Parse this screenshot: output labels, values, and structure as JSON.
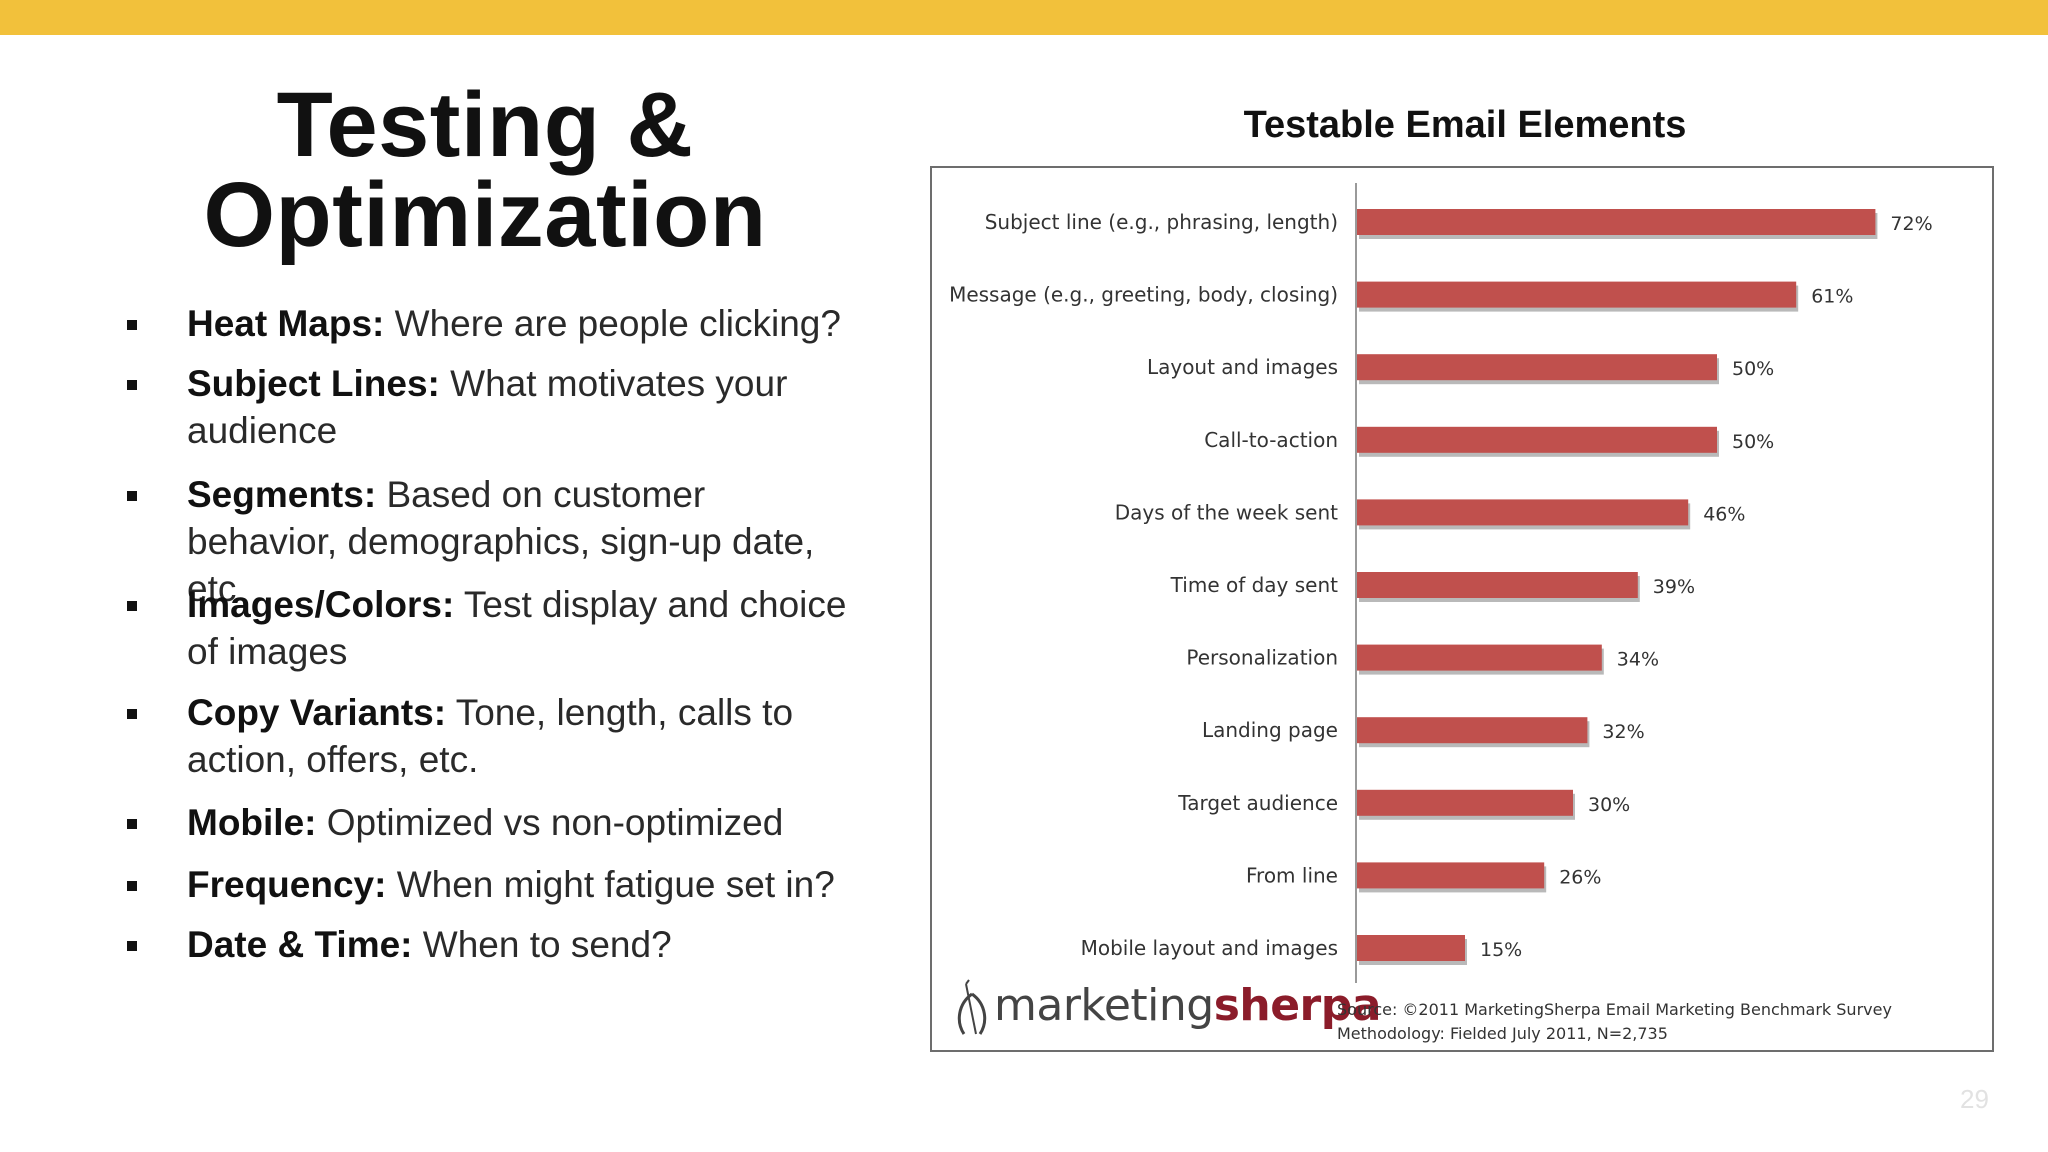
{
  "theme": {
    "accent_bar": "#f2c13b",
    "bar_color": "#c0504d",
    "bar_shadow": "#b9b9b9"
  },
  "slide": {
    "title_line1": "Testing &",
    "title_line2": "Optimization",
    "page_number": "29"
  },
  "bullets": [
    {
      "term": "Heat Maps:",
      "text": "Where are people clicking?"
    },
    {
      "term": "Subject Lines:",
      "text": "What motivates your audience"
    },
    {
      "term": "Segments:",
      "text": "Based on customer behavior, demographics, sign-up date, etc"
    },
    {
      "term": "Images/Colors:",
      "text": "Test display and choice of images"
    },
    {
      "term": "Copy Variants:",
      "text": "Tone, length, calls to action, offers, etc."
    },
    {
      "term": "Mobile:",
      "text": "Optimized vs non-optimized"
    },
    {
      "term": "Frequency:",
      "text": "When might fatigue set in?"
    },
    {
      "term": "Date & Time:",
      "text": "When to send?"
    }
  ],
  "chart_data": {
    "type": "bar",
    "orientation": "horizontal",
    "title": "Testable Email Elements",
    "categories": [
      "Subject line (e.g., phrasing, length)",
      "Message (e.g., greeting, body, closing)",
      "Layout and images",
      "Call-to-action",
      "Days of the week sent",
      "Time of day sent",
      "Personalization",
      "Landing page",
      "Target audience",
      "From line",
      "Mobile layout and images"
    ],
    "values": [
      72,
      61,
      50,
      50,
      46,
      39,
      34,
      32,
      30,
      26,
      15
    ],
    "value_labels": [
      "72%",
      "61%",
      "50%",
      "50%",
      "46%",
      "39%",
      "34%",
      "32%",
      "30%",
      "26%",
      "15%"
    ],
    "xlim": [
      0,
      80
    ],
    "grid": false,
    "legend": "none",
    "xlabel": "",
    "ylabel": ""
  },
  "branding": {
    "logo_part1": "marketing",
    "logo_part2": "sherpa",
    "logo_icon": "sherpa-figure-icon"
  },
  "source": {
    "line1": "Source: ©2011 MarketingSherpa Email Marketing Benchmark Survey",
    "line2": "Methodology: Fielded July 2011, N=2,735"
  }
}
